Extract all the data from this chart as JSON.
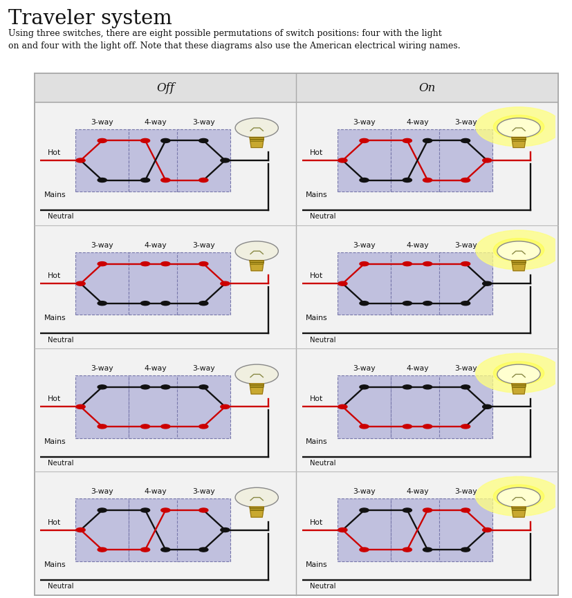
{
  "title": "Traveler system",
  "subtitle": "Using three switches, there are eight possible permutations of switch positions: four with the light\non and four with the light off. Note that these diagrams also use the American electrical wiring names.",
  "col_headers": [
    "Off",
    "On"
  ],
  "background_color": "#ffffff",
  "diagrams": [
    {
      "row": 0,
      "col": 0,
      "state": "off",
      "s1": 0,
      "s4": 1,
      "s3": 0
    },
    {
      "row": 0,
      "col": 1,
      "state": "on",
      "s1": 0,
      "s4": 1,
      "s3": 1
    },
    {
      "row": 1,
      "col": 0,
      "state": "off",
      "s1": 0,
      "s4": 0,
      "s3": 0
    },
    {
      "row": 1,
      "col": 1,
      "state": "on",
      "s1": 0,
      "s4": 0,
      "s3": 1
    },
    {
      "row": 2,
      "col": 0,
      "state": "off",
      "s1": 1,
      "s4": 0,
      "s3": 1
    },
    {
      "row": 2,
      "col": 1,
      "state": "on",
      "s1": 1,
      "s4": 0,
      "s3": 0
    },
    {
      "row": 3,
      "col": 0,
      "state": "off",
      "s1": 1,
      "s4": 1,
      "s3": 1
    },
    {
      "row": 3,
      "col": 1,
      "state": "on",
      "s1": 1,
      "s4": 1,
      "s3": 0
    }
  ],
  "red": "#cc0000",
  "black": "#111111",
  "dot_black": "#111111",
  "dot_red": "#cc0000",
  "switch_bg": "#c0c0de",
  "cell_bg": "#ffffff",
  "hot_label": "Hot",
  "mains_label": "Mains",
  "neutral_label": "Neutral",
  "label_3way": "3-way",
  "label_4way": "4-way"
}
